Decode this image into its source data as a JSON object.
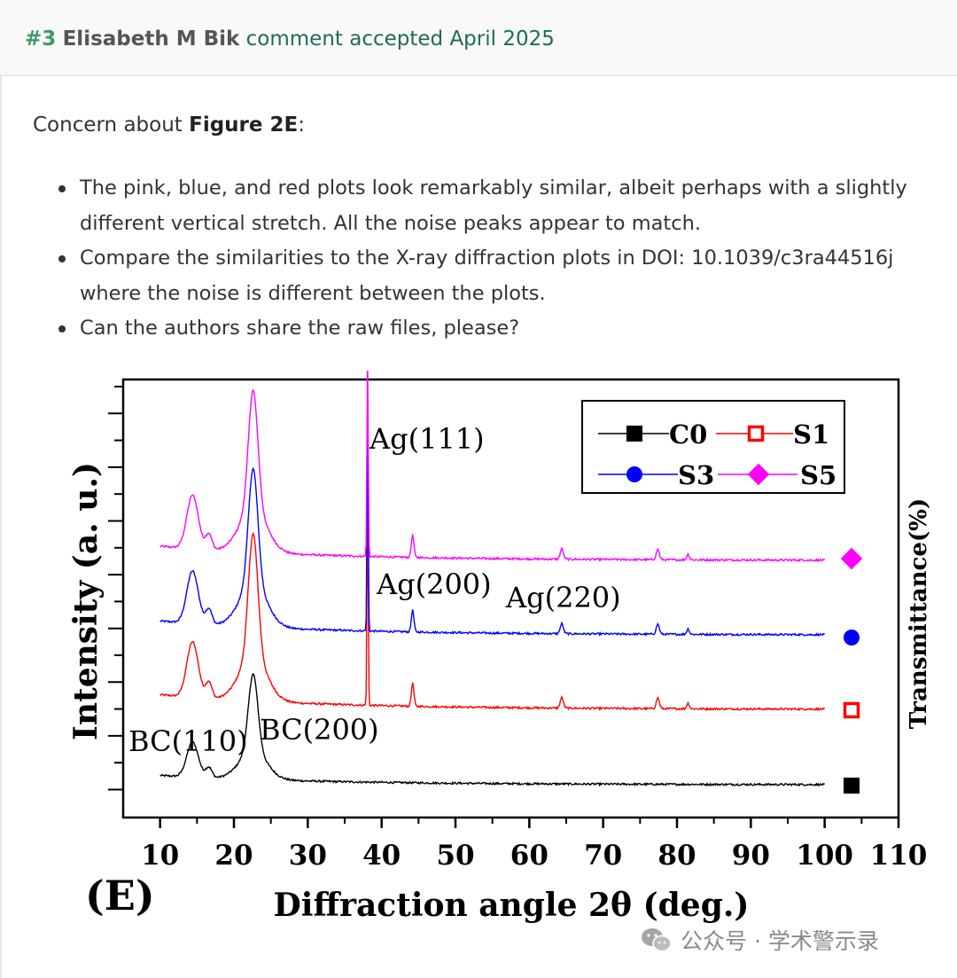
{
  "header": {
    "number": "#3",
    "author": "Elisabeth M Bik",
    "status": "comment accepted April 2025"
  },
  "comment": {
    "intro_prefix": "Concern about ",
    "intro_bold": "Figure 2E",
    "intro_suffix": ":",
    "bullets": [
      "The pink, blue, and red plots look remarkably similar, albeit perhaps with a slightly different vertical stretch. All the noise peaks appear to match.",
      "Compare the similarities to the X-ray diffraction plots in DOI: 10.1039/c3ra44516j where the noise is different between the plots.",
      "Can the authors share the raw files, please?"
    ]
  },
  "figure": {
    "panel_label": "(E)",
    "right_axis_label": "Transmittance(%)"
  },
  "chart_data": {
    "type": "line",
    "xlabel": "Diffraction angle 2θ (deg.)",
    "ylabel": "Intensity (a. u.)",
    "xlim": [
      5,
      110
    ],
    "x_ticks": [
      10,
      20,
      30,
      40,
      50,
      60,
      70,
      80,
      90,
      100,
      110
    ],
    "legend_position": "top-right",
    "series": [
      {
        "name": "C0",
        "color": "#000000",
        "marker": "filled-square",
        "baseline": 0
      },
      {
        "name": "S1",
        "color": "#ff0000",
        "marker": "open-square",
        "baseline": 1
      },
      {
        "name": "S3",
        "color": "#0000ff",
        "marker": "filled-circle",
        "baseline": 2
      },
      {
        "name": "S5",
        "color": "#ff00ff",
        "marker": "filled-diamond",
        "baseline": 3
      }
    ],
    "annotations": [
      {
        "text": "BC(110)",
        "x": 14.5
      },
      {
        "text": "BC(200)",
        "x": 22.6
      },
      {
        "text": "Ag(111)",
        "x": 38.1
      },
      {
        "text": "Ag(200)",
        "x": 44.2
      },
      {
        "text": "Ag(220)",
        "x": 64.4
      }
    ]
  },
  "watermark": {
    "text": "公众号 · 学术警示录"
  }
}
